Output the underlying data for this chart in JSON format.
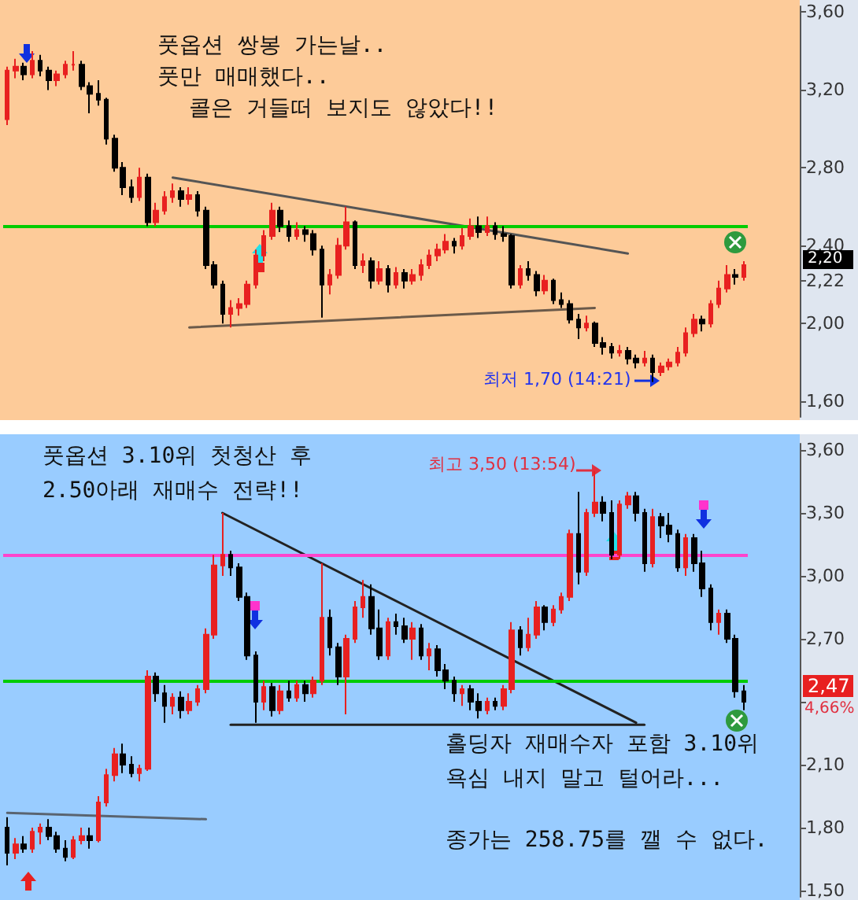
{
  "chart_data": [
    {
      "type": "candlestick",
      "tick_labels": "y",
      "categories": [
        null,
        null,
        null,
        null,
        null,
        null,
        null,
        null,
        null,
        null,
        null,
        null,
        null,
        null,
        null,
        null,
        null,
        null,
        null,
        null,
        null,
        null,
        null,
        null,
        null,
        null,
        null,
        null,
        null,
        null,
        null,
        null,
        null,
        null,
        null,
        null,
        null,
        null,
        null,
        null,
        null,
        null,
        null,
        null,
        null,
        null,
        null,
        null,
        null,
        null,
        null,
        null,
        null,
        null,
        null,
        null,
        null,
        null,
        null,
        null,
        null,
        null,
        null,
        null,
        null,
        null,
        null,
        null,
        null,
        null,
        null,
        null,
        null,
        null,
        null,
        null,
        null,
        null,
        null,
        null,
        null,
        null,
        null,
        null,
        null,
        null,
        null,
        null,
        null,
        null
      ],
      "ohlc": [
        [
          3.05,
          3.32,
          3.02,
          3.3
        ],
        [
          3.3,
          3.36,
          3.26,
          3.32
        ],
        [
          3.32,
          3.34,
          3.25,
          3.28
        ],
        [
          3.28,
          3.4,
          3.26,
          3.35
        ],
        [
          3.35,
          3.38,
          3.27,
          3.3
        ],
        [
          3.3,
          3.32,
          3.2,
          3.25
        ],
        [
          3.25,
          3.3,
          3.22,
          3.28
        ],
        [
          3.28,
          3.35,
          3.26,
          3.33
        ],
        [
          3.33,
          3.4,
          3.3,
          3.33
        ],
        [
          3.33,
          3.35,
          3.2,
          3.22
        ],
        [
          3.22,
          3.24,
          3.08,
          3.18
        ],
        [
          3.18,
          3.25,
          3.12,
          3.15
        ],
        [
          3.15,
          3.16,
          2.92,
          2.95
        ],
        [
          2.95,
          2.97,
          2.78,
          2.8
        ],
        [
          2.8,
          2.83,
          2.66,
          2.7
        ],
        [
          2.7,
          2.74,
          2.62,
          2.65
        ],
        [
          2.65,
          2.8,
          2.63,
          2.75
        ],
        [
          2.75,
          2.77,
          2.5,
          2.52
        ],
        [
          2.52,
          2.62,
          2.5,
          2.58
        ],
        [
          2.58,
          2.68,
          2.56,
          2.65
        ],
        [
          2.65,
          2.72,
          2.62,
          2.68
        ],
        [
          2.68,
          2.7,
          2.6,
          2.64
        ],
        [
          2.64,
          2.7,
          2.61,
          2.66
        ],
        [
          2.66,
          2.68,
          2.55,
          2.58
        ],
        [
          2.58,
          2.6,
          2.28,
          2.3
        ],
        [
          2.3,
          2.32,
          2.18,
          2.2
        ],
        [
          2.2,
          2.22,
          2.0,
          2.05
        ],
        [
          2.05,
          2.12,
          1.98,
          2.08
        ],
        [
          2.08,
          2.13,
          2.04,
          2.1
        ],
        [
          2.1,
          2.22,
          2.08,
          2.2
        ],
        [
          2.2,
          2.38,
          2.18,
          2.35
        ],
        [
          2.35,
          2.48,
          2.32,
          2.45
        ],
        [
          2.45,
          2.62,
          2.43,
          2.58
        ],
        [
          2.58,
          2.6,
          2.47,
          2.5
        ],
        [
          2.5,
          2.53,
          2.42,
          2.45
        ],
        [
          2.45,
          2.52,
          2.43,
          2.48
        ],
        [
          2.48,
          2.5,
          2.42,
          2.46
        ],
        [
          2.46,
          2.48,
          2.35,
          2.38
        ],
        [
          2.38,
          2.4,
          2.03,
          2.2
        ],
        [
          2.2,
          2.28,
          2.15,
          2.25
        ],
        [
          2.25,
          2.44,
          2.23,
          2.4
        ],
        [
          2.4,
          2.6,
          2.38,
          2.52
        ],
        [
          2.52,
          2.53,
          2.28,
          2.3
        ],
        [
          2.3,
          2.36,
          2.26,
          2.32
        ],
        [
          2.32,
          2.34,
          2.18,
          2.22
        ],
        [
          2.22,
          2.32,
          2.2,
          2.28
        ],
        [
          2.28,
          2.3,
          2.16,
          2.2
        ],
        [
          2.2,
          2.29,
          2.18,
          2.26
        ],
        [
          2.26,
          2.28,
          2.18,
          2.22
        ],
        [
          2.22,
          2.28,
          2.2,
          2.25
        ],
        [
          2.25,
          2.33,
          2.22,
          2.3
        ],
        [
          2.3,
          2.38,
          2.28,
          2.35
        ],
        [
          2.35,
          2.41,
          2.32,
          2.38
        ],
        [
          2.38,
          2.46,
          2.36,
          2.42
        ],
        [
          2.42,
          2.44,
          2.36,
          2.4
        ],
        [
          2.4,
          2.49,
          2.38,
          2.45
        ],
        [
          2.45,
          2.54,
          2.43,
          2.5
        ],
        [
          2.5,
          2.55,
          2.44,
          2.47
        ],
        [
          2.47,
          2.55,
          2.45,
          2.5
        ],
        [
          2.5,
          2.52,
          2.43,
          2.46
        ],
        [
          2.46,
          2.5,
          2.42,
          2.45
        ],
        [
          2.45,
          2.46,
          2.18,
          2.2
        ],
        [
          2.2,
          2.3,
          2.18,
          2.28
        ],
        [
          2.28,
          2.32,
          2.22,
          2.25
        ],
        [
          2.25,
          2.27,
          2.14,
          2.17
        ],
        [
          2.17,
          2.25,
          2.15,
          2.22
        ],
        [
          2.22,
          2.23,
          2.1,
          2.12
        ],
        [
          2.12,
          2.16,
          2.08,
          2.1
        ],
        [
          2.1,
          2.12,
          2.0,
          2.02
        ],
        [
          2.02,
          2.05,
          1.92,
          1.98
        ],
        [
          1.98,
          2.04,
          1.96,
          2.0
        ],
        [
          2.0,
          2.01,
          1.88,
          1.9
        ],
        [
          1.9,
          1.93,
          1.84,
          1.88
        ],
        [
          1.88,
          1.9,
          1.82,
          1.85
        ],
        [
          1.85,
          1.89,
          1.83,
          1.86
        ],
        [
          1.86,
          1.88,
          1.79,
          1.82
        ],
        [
          1.82,
          1.84,
          1.77,
          1.8
        ],
        [
          1.8,
          1.86,
          1.78,
          1.82
        ],
        [
          1.82,
          1.84,
          1.7,
          1.75
        ],
        [
          1.75,
          1.8,
          1.73,
          1.78
        ],
        [
          1.78,
          1.82,
          1.76,
          1.8
        ],
        [
          1.8,
          1.88,
          1.78,
          1.85
        ],
        [
          1.85,
          1.98,
          1.83,
          1.95
        ],
        [
          1.95,
          2.05,
          1.93,
          2.02
        ],
        [
          2.02,
          2.04,
          1.96,
          2.0
        ],
        [
          2.0,
          2.12,
          1.98,
          2.1
        ],
        [
          2.1,
          2.22,
          2.08,
          2.18
        ],
        [
          2.18,
          2.3,
          2.16,
          2.25
        ],
        [
          2.25,
          2.28,
          2.2,
          2.24
        ],
        [
          2.24,
          2.32,
          2.22,
          2.3
        ]
      ],
      "series": [
        {
          "type": "line",
          "color": "#555555",
          "values": [
            null,
            null,
            null,
            null,
            null,
            null,
            null,
            null,
            null,
            null,
            null,
            null,
            null,
            null,
            null,
            null,
            null,
            null,
            null,
            null,
            2.75,
            null,
            null,
            null,
            null,
            null,
            null,
            null,
            null,
            null,
            null,
            null,
            null,
            null,
            null,
            null,
            null,
            null,
            null,
            null,
            null,
            null,
            null,
            null,
            null,
            null,
            null,
            null,
            null,
            null,
            null,
            null,
            null,
            null,
            null,
            null,
            null,
            null,
            null,
            null,
            null,
            null,
            null,
            null,
            null,
            null,
            null,
            null,
            null,
            null,
            null,
            null,
            null,
            null,
            null,
            2.36,
            null,
            null,
            null,
            null,
            null,
            null,
            null,
            null,
            null,
            null,
            null,
            null,
            null,
            null
          ]
        },
        {
          "type": "line",
          "color": "#6b5a4a",
          "values": [
            null,
            null,
            null,
            null,
            null,
            null,
            null,
            null,
            null,
            null,
            null,
            null,
            null,
            null,
            null,
            null,
            null,
            null,
            null,
            null,
            null,
            null,
            1.98,
            null,
            null,
            null,
            null,
            null,
            null,
            null,
            null,
            null,
            null,
            null,
            null,
            null,
            null,
            null,
            null,
            null,
            null,
            null,
            null,
            null,
            null,
            null,
            null,
            null,
            null,
            null,
            null,
            null,
            null,
            null,
            null,
            null,
            null,
            null,
            null,
            null,
            null,
            null,
            null,
            null,
            null,
            null,
            null,
            null,
            null,
            null,
            null,
            2.08,
            null,
            null,
            null,
            null,
            null,
            null,
            null,
            null,
            null,
            null,
            null,
            null,
            null,
            null,
            null,
            null,
            null,
            null
          ]
        }
      ],
      "ylim": [
        1.52,
        3.63
      ],
      "yticks": [
        {
          "value": 1.6,
          "label": "1,60"
        },
        {
          "value": 2.0,
          "label": "2,00"
        },
        {
          "value": 2.22,
          "label": "2,22"
        },
        {
          "value": 2.4,
          "label": "2,40"
        },
        {
          "value": 2.8,
          "label": "2,80"
        },
        {
          "value": 3.2,
          "label": "3,20"
        },
        {
          "value": 3.6,
          "label": "3,60"
        }
      ],
      "ref_lines": [
        {
          "axis": "y",
          "value": 2.5,
          "color": "#00cc00"
        }
      ],
      "annotations": [
        "풋옵션 쌍봉 가는날..",
        "풋만 매매했다..",
        "콜은 거들떠 보지도 않았다!!",
        "최저 1,70 (14:21)",
        "2,20"
      ]
    },
    {
      "type": "candlestick",
      "tick_labels": "y",
      "categories": [
        null,
        null,
        null,
        null,
        null,
        null,
        null,
        null,
        null,
        null,
        null,
        null,
        null,
        null,
        null,
        null,
        null,
        null,
        null,
        null,
        null,
        null,
        null,
        null,
        null,
        null,
        null,
        null,
        null,
        null,
        null,
        null,
        null,
        null,
        null,
        null,
        null,
        null,
        null,
        null,
        null,
        null,
        null,
        null,
        null,
        null,
        null,
        null,
        null,
        null,
        null,
        null,
        null,
        null,
        null,
        null,
        null,
        null,
        null,
        null,
        null,
        null,
        null,
        null,
        null,
        null,
        null,
        null,
        null,
        null,
        null,
        null,
        null,
        null,
        null,
        null,
        null,
        null,
        null,
        null,
        null,
        null,
        null,
        null,
        null,
        null,
        null,
        null,
        null,
        null
      ],
      "ohlc": [
        [
          1.8,
          1.85,
          1.62,
          1.68
        ],
        [
          1.68,
          1.75,
          1.65,
          1.72
        ],
        [
          1.72,
          1.76,
          1.68,
          1.7
        ],
        [
          1.7,
          1.8,
          1.68,
          1.78
        ],
        [
          1.78,
          1.82,
          1.72,
          1.8
        ],
        [
          1.8,
          1.84,
          1.74,
          1.76
        ],
        [
          1.76,
          1.78,
          1.68,
          1.7
        ],
        [
          1.7,
          1.74,
          1.64,
          1.66
        ],
        [
          1.66,
          1.76,
          1.65,
          1.74
        ],
        [
          1.74,
          1.8,
          1.72,
          1.76
        ],
        [
          1.76,
          1.8,
          1.7,
          1.74
        ],
        [
          1.74,
          1.95,
          1.73,
          1.92
        ],
        [
          1.92,
          2.08,
          1.9,
          2.05
        ],
        [
          2.05,
          2.18,
          2.02,
          2.15
        ],
        [
          2.15,
          2.2,
          2.06,
          2.1
        ],
        [
          2.1,
          2.14,
          2.04,
          2.06
        ],
        [
          2.06,
          2.1,
          2.02,
          2.08
        ],
        [
          2.08,
          2.55,
          2.07,
          2.52
        ],
        [
          2.52,
          2.54,
          2.4,
          2.44
        ],
        [
          2.44,
          2.48,
          2.3,
          2.38
        ],
        [
          2.38,
          2.44,
          2.34,
          2.42
        ],
        [
          2.42,
          2.45,
          2.32,
          2.36
        ],
        [
          2.36,
          2.44,
          2.34,
          2.4
        ],
        [
          2.4,
          2.48,
          2.38,
          2.46
        ],
        [
          2.46,
          2.75,
          2.44,
          2.72
        ],
        [
          2.72,
          3.1,
          2.7,
          3.05
        ],
        [
          3.05,
          3.3,
          3.0,
          3.1
        ],
        [
          3.1,
          3.12,
          3.0,
          3.04
        ],
        [
          3.04,
          3.06,
          2.88,
          2.9
        ],
        [
          2.9,
          2.92,
          2.6,
          2.62
        ],
        [
          2.62,
          2.64,
          2.3,
          2.4
        ],
        [
          2.4,
          2.5,
          2.36,
          2.47
        ],
        [
          2.47,
          2.49,
          2.33,
          2.36
        ],
        [
          2.36,
          2.48,
          2.34,
          2.45
        ],
        [
          2.45,
          2.5,
          2.4,
          2.42
        ],
        [
          2.42,
          2.5,
          2.4,
          2.48
        ],
        [
          2.48,
          2.5,
          2.4,
          2.44
        ],
        [
          2.44,
          2.52,
          2.42,
          2.5
        ],
        [
          2.5,
          3.06,
          2.48,
          2.8
        ],
        [
          2.8,
          2.84,
          2.62,
          2.66
        ],
        [
          2.66,
          2.68,
          2.48,
          2.52
        ],
        [
          2.52,
          2.72,
          2.34,
          2.7
        ],
        [
          2.7,
          2.88,
          2.68,
          2.85
        ],
        [
          2.85,
          2.98,
          2.8,
          2.9
        ],
        [
          2.9,
          2.96,
          2.72,
          2.75
        ],
        [
          2.75,
          2.84,
          2.6,
          2.62
        ],
        [
          2.62,
          2.8,
          2.6,
          2.78
        ],
        [
          2.78,
          2.82,
          2.72,
          2.76
        ],
        [
          2.76,
          2.8,
          2.68,
          2.7
        ],
        [
          2.7,
          2.78,
          2.6,
          2.75
        ],
        [
          2.75,
          2.77,
          2.6,
          2.62
        ],
        [
          2.62,
          2.68,
          2.55,
          2.65
        ],
        [
          2.65,
          2.67,
          2.52,
          2.55
        ],
        [
          2.55,
          2.58,
          2.46,
          2.5
        ],
        [
          2.5,
          2.52,
          2.4,
          2.44
        ],
        [
          2.44,
          2.48,
          2.38,
          2.46
        ],
        [
          2.46,
          2.48,
          2.36,
          2.4
        ],
        [
          2.4,
          2.44,
          2.32,
          2.36
        ],
        [
          2.36,
          2.42,
          2.34,
          2.4
        ],
        [
          2.4,
          2.42,
          2.36,
          2.38
        ],
        [
          2.38,
          2.48,
          2.36,
          2.46
        ],
        [
          2.46,
          2.78,
          2.44,
          2.74
        ],
        [
          2.74,
          2.76,
          2.62,
          2.66
        ],
        [
          2.66,
          2.8,
          2.64,
          2.72
        ],
        [
          2.72,
          2.88,
          2.7,
          2.85
        ],
        [
          2.85,
          2.86,
          2.74,
          2.78
        ],
        [
          2.78,
          2.86,
          2.76,
          2.84
        ],
        [
          2.84,
          2.92,
          2.82,
          2.9
        ],
        [
          2.9,
          3.22,
          2.88,
          3.2
        ],
        [
          3.2,
          3.4,
          2.96,
          3.02
        ],
        [
          3.02,
          3.32,
          3.0,
          3.3
        ],
        [
          3.3,
          3.5,
          3.28,
          3.35
        ],
        [
          3.35,
          3.38,
          3.26,
          3.3
        ],
        [
          3.3,
          3.36,
          3.08,
          3.1
        ],
        [
          3.1,
          3.36,
          3.08,
          3.34
        ],
        [
          3.34,
          3.4,
          3.32,
          3.38
        ],
        [
          3.38,
          3.4,
          3.26,
          3.3
        ],
        [
          3.3,
          3.32,
          3.02,
          3.06
        ],
        [
          3.06,
          3.32,
          3.04,
          3.28
        ],
        [
          3.28,
          3.3,
          3.18,
          3.24
        ],
        [
          3.24,
          3.3,
          3.16,
          3.2
        ],
        [
          3.2,
          3.22,
          3.02,
          3.04
        ],
        [
          3.04,
          3.2,
          3.0,
          3.18
        ],
        [
          3.18,
          3.2,
          3.02,
          3.06
        ],
        [
          3.06,
          3.12,
          2.9,
          2.94
        ],
        [
          2.94,
          2.96,
          2.74,
          2.78
        ],
        [
          2.78,
          2.84,
          2.72,
          2.82
        ],
        [
          2.82,
          2.84,
          2.68,
          2.7
        ],
        [
          2.7,
          2.72,
          2.42,
          2.45
        ],
        [
          2.45,
          2.48,
          2.36,
          2.4
        ]
      ],
      "series": [
        {
          "type": "line",
          "color": "#222222",
          "values": [
            null,
            null,
            null,
            null,
            null,
            null,
            null,
            null,
            null,
            null,
            null,
            null,
            null,
            null,
            null,
            null,
            null,
            null,
            null,
            null,
            null,
            null,
            null,
            null,
            null,
            null,
            3.3,
            null,
            null,
            null,
            null,
            null,
            null,
            null,
            null,
            null,
            null,
            null,
            null,
            null,
            null,
            null,
            null,
            null,
            null,
            null,
            null,
            null,
            null,
            null,
            null,
            null,
            null,
            null,
            null,
            null,
            null,
            null,
            null,
            null,
            null,
            null,
            null,
            null,
            null,
            null,
            null,
            null,
            null,
            null,
            null,
            null,
            null,
            null,
            null,
            null,
            2.3,
            null,
            null,
            null,
            null,
            null,
            null,
            null,
            null,
            null,
            null,
            null,
            null,
            null
          ]
        },
        {
          "type": "line",
          "color": "#222222",
          "values": [
            null,
            null,
            null,
            null,
            null,
            null,
            null,
            null,
            null,
            null,
            null,
            null,
            null,
            null,
            null,
            null,
            null,
            null,
            null,
            null,
            null,
            null,
            null,
            null,
            null,
            null,
            null,
            2.29,
            null,
            null,
            null,
            null,
            null,
            null,
            null,
            null,
            null,
            null,
            null,
            null,
            null,
            null,
            null,
            null,
            null,
            null,
            null,
            null,
            null,
            null,
            null,
            null,
            null,
            null,
            null,
            null,
            null,
            null,
            null,
            null,
            null,
            null,
            null,
            null,
            null,
            null,
            null,
            null,
            null,
            null,
            null,
            null,
            null,
            null,
            null,
            null,
            null,
            2.29,
            null,
            null,
            null,
            null,
            null,
            null,
            null,
            null,
            null,
            null,
            null,
            null
          ]
        },
        {
          "type": "line",
          "color": "#5a6470",
          "values": [
            1.87,
            null,
            null,
            null,
            null,
            null,
            null,
            null,
            null,
            null,
            null,
            null,
            null,
            null,
            null,
            null,
            null,
            null,
            null,
            null,
            null,
            null,
            null,
            null,
            1.84,
            null,
            null,
            null,
            null,
            null,
            null,
            null,
            null,
            null,
            null,
            null,
            null,
            null,
            null,
            null,
            null,
            null,
            null,
            null,
            null,
            null,
            null,
            null,
            null,
            null,
            null,
            null,
            null,
            null,
            null,
            null,
            null,
            null,
            null,
            null,
            null,
            null,
            null,
            null,
            null,
            null,
            null,
            null,
            null,
            null,
            null,
            null,
            null,
            null,
            null,
            null,
            null,
            null,
            null,
            null,
            null,
            null,
            null,
            null,
            null,
            null,
            null,
            null,
            null,
            null
          ]
        }
      ],
      "ylim": [
        1.47,
        3.63
      ],
      "yticks": [
        {
          "value": 1.5,
          "label": "1,50"
        },
        {
          "value": 1.8,
          "label": "1,80"
        },
        {
          "value": 2.1,
          "label": "2,10"
        },
        {
          "value": 2.4,
          "label": null
        },
        {
          "value": 2.7,
          "label": "2,70"
        },
        {
          "value": 3.0,
          "label": "3,00"
        },
        {
          "value": 3.3,
          "label": "3,30"
        },
        {
          "value": 3.6,
          "label": "3,60"
        }
      ],
      "ref_lines": [
        {
          "axis": "y",
          "value": 2.5,
          "color": "#00cc00"
        },
        {
          "axis": "y",
          "value": 3.1,
          "color": "#ff44cc"
        }
      ],
      "annotations": [
        "풋옵션 3.10위 첫청산 후",
        "2.50아래 재매수 전략!!",
        "최고 3,50 (13:54)",
        "홀딩자 재매수자 포함 3.10위",
        "욕심 내지 말고 털어라...",
        "종가는 258.75를 깰 수 없다.",
        "2,47",
        "4,66%"
      ]
    }
  ]
}
